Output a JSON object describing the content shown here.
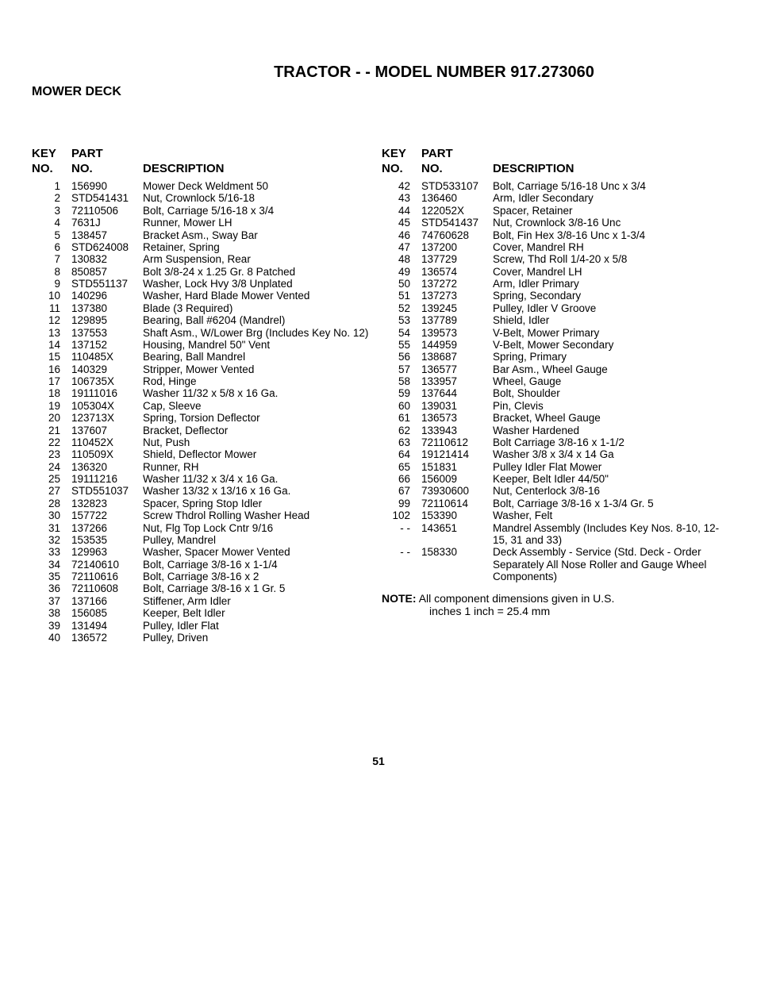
{
  "title": "TRACTOR - - MODEL NUMBER 917.273060",
  "subtitle": "MOWER DECK",
  "headers": {
    "key1": "KEY",
    "key2": "NO.",
    "part1": "PART",
    "part2": "NO.",
    "desc": "DESCRIPTION"
  },
  "left": [
    {
      "k": "1",
      "p": "156990",
      "d": "Mower Deck Weldment 50"
    },
    {
      "k": "2",
      "p": "STD541431",
      "d": "Nut, Crownlock 5/16-18"
    },
    {
      "k": "3",
      "p": "72110506",
      "d": "Bolt, Carriage  5/16-18 x 3/4"
    },
    {
      "k": "4",
      "p": "7631J",
      "d": "Runner, Mower LH"
    },
    {
      "k": "5",
      "p": "138457",
      "d": "Bracket Asm., Sway Bar"
    },
    {
      "k": "6",
      "p": "STD624008",
      "d": "Retainer, Spring"
    },
    {
      "k": "7",
      "p": "130832",
      "d": "Arm Suspension, Rear"
    },
    {
      "k": "8",
      "p": "850857",
      "d": "Bolt  3/8-24 x 1.25 Gr. 8 Patched"
    },
    {
      "k": "9",
      "p": "STD551137",
      "d": "Washer, Lock Hvy  3/8 Unplated"
    },
    {
      "k": "10",
      "p": "140296",
      "d": "Washer, Hard Blade Mower Vented"
    },
    {
      "k": "11",
      "p": "137380",
      "d": "Blade (3 Required)"
    },
    {
      "k": "12",
      "p": "129895",
      "d": "Bearing, Ball  #6204 (Mandrel)"
    },
    {
      "k": "13",
      "p": "137553",
      "d": "Shaft Asm., W/Lower Brg (Includes Key No. 12)"
    },
    {
      "k": "14",
      "p": "137152",
      "d": "Housing, Mandrel 50\" Vent"
    },
    {
      "k": "15",
      "p": "110485X",
      "d": "Bearing, Ball Mandrel"
    },
    {
      "k": "16",
      "p": "140329",
      "d": "Stripper, Mower Vented"
    },
    {
      "k": "17",
      "p": "106735X",
      "d": "Rod, Hinge"
    },
    {
      "k": "18",
      "p": "19111016",
      "d": "Washer  11/32 x 5/8 x 16 Ga."
    },
    {
      "k": "19",
      "p": "105304X",
      "d": "Cap, Sleeve"
    },
    {
      "k": "20",
      "p": "123713X",
      "d": "Spring, Torsion Deflector"
    },
    {
      "k": "21",
      "p": "137607",
      "d": "Bracket, Deflector"
    },
    {
      "k": "22",
      "p": "110452X",
      "d": "Nut, Push"
    },
    {
      "k": "23",
      "p": "110509X",
      "d": "Shield, Deflector Mower"
    },
    {
      "k": "24",
      "p": "136320",
      "d": "Runner, RH"
    },
    {
      "k": "25",
      "p": "19111216",
      "d": "Washer  11/32 x 3/4 x 16 Ga."
    },
    {
      "k": "27",
      "p": "STD551037",
      "d": "Washer  13/32 x 13/16 x 16 Ga."
    },
    {
      "k": "28",
      "p": "132823",
      "d": "Spacer, Spring Stop Idler"
    },
    {
      "k": "30",
      "p": "157722",
      "d": "Screw Thdrol Rolling Washer Head"
    },
    {
      "k": "31",
      "p": "137266",
      "d": "Nut, Flg Top Lock Cntr  9/16"
    },
    {
      "k": "32",
      "p": "153535",
      "d": "Pulley, Mandrel"
    },
    {
      "k": "33",
      "p": "129963",
      "d": "Washer, Spacer Mower Vented"
    },
    {
      "k": "34",
      "p": "72140610",
      "d": "Bolt, Carriage  3/8-16 x 1-1/4"
    },
    {
      "k": "35",
      "p": "72110616",
      "d": "Bolt, Carriage  3/8-16 x 2"
    },
    {
      "k": "36",
      "p": "72110608",
      "d": "Bolt, Carriage  3/8-16 x 1 Gr. 5"
    },
    {
      "k": "37",
      "p": "137166",
      "d": "Stiffener, Arm Idler"
    },
    {
      "k": "38",
      "p": "156085",
      "d": "Keeper, Belt Idler"
    },
    {
      "k": "39",
      "p": "131494",
      "d": "Pulley, Idler Flat"
    },
    {
      "k": "40",
      "p": "136572",
      "d": "Pulley, Driven"
    }
  ],
  "right": [
    {
      "k": "42",
      "p": "STD533107",
      "d": "Bolt, Carriage  5/16-18 Unc x 3/4"
    },
    {
      "k": "43",
      "p": "136460",
      "d": "Arm, Idler Secondary"
    },
    {
      "k": "44",
      "p": "122052X",
      "d": "Spacer, Retainer"
    },
    {
      "k": "45",
      "p": "STD541437",
      "d": "Nut, Crownlock  3/8-16 Unc"
    },
    {
      "k": "46",
      "p": "74760628",
      "d": "Bolt, Fin Hex  3/8-16 Unc x 1-3/4"
    },
    {
      "k": "47",
      "p": "137200",
      "d": "Cover, Mandrel RH"
    },
    {
      "k": "48",
      "p": "137729",
      "d": "Screw, Thd Roll  1/4-20 x 5/8"
    },
    {
      "k": "49",
      "p": "136574",
      "d": "Cover, Mandrel LH"
    },
    {
      "k": "50",
      "p": "137272",
      "d": "Arm, Idler Primary"
    },
    {
      "k": "51",
      "p": "137273",
      "d": "Spring, Secondary"
    },
    {
      "k": "52",
      "p": "139245",
      "d": "Pulley, Idler V Groove"
    },
    {
      "k": "53",
      "p": "137789",
      "d": "Shield, Idler"
    },
    {
      "k": "54",
      "p": "139573",
      "d": "V-Belt, Mower Primary"
    },
    {
      "k": "55",
      "p": "144959",
      "d": "V-Belt, Mower Secondary"
    },
    {
      "k": "56",
      "p": "138687",
      "d": "Spring, Primary"
    },
    {
      "k": "57",
      "p": "136577",
      "d": "Bar Asm., Wheel Gauge"
    },
    {
      "k": "58",
      "p": "133957",
      "d": "Wheel, Gauge"
    },
    {
      "k": "59",
      "p": "137644",
      "d": "Bolt, Shoulder"
    },
    {
      "k": "60",
      "p": "139031",
      "d": "Pin, Clevis"
    },
    {
      "k": "61",
      "p": "136573",
      "d": "Bracket, Wheel Gauge"
    },
    {
      "k": "62",
      "p": "133943",
      "d": "Washer Hardened"
    },
    {
      "k": "63",
      "p": "72110612",
      "d": "Bolt Carriage  3/8-16 x 1-1/2"
    },
    {
      "k": "64",
      "p": "19121414",
      "d": "Washer 3/8 x 3/4 x 14 Ga"
    },
    {
      "k": "65",
      "p": "151831",
      "d": "Pulley Idler Flat Mower"
    },
    {
      "k": "66",
      "p": "156009",
      "d": "Keeper, Belt Idler 44/50\""
    },
    {
      "k": "67",
      "p": "73930600",
      "d": "Nut, Centerlock  3/8-16"
    },
    {
      "k": "",
      "p": "",
      "d": ""
    },
    {
      "k": "99",
      "p": "72110614",
      "d": "Bolt, Carriage  3/8-16 x 1-3/4 Gr. 5"
    },
    {
      "k": "102",
      "p": "153390",
      "d": "Washer, Felt"
    },
    {
      "k": "- -",
      "p": "143651",
      "d": "Mandrel Assembly (Includes Key Nos. 8-10, 12-15, 31 and 33)"
    },
    {
      "k": "- -",
      "p": "158330",
      "d": "Deck Assembly - Service (Std. Deck - Order Separately All Nose Roller and Gauge Wheel Components)"
    }
  ],
  "note_label": "NOTE:",
  "note_line1": "All component dimensions given in  U.S.",
  "note_line2": "inches 1 inch = 25.4 mm",
  "page_number": "51"
}
